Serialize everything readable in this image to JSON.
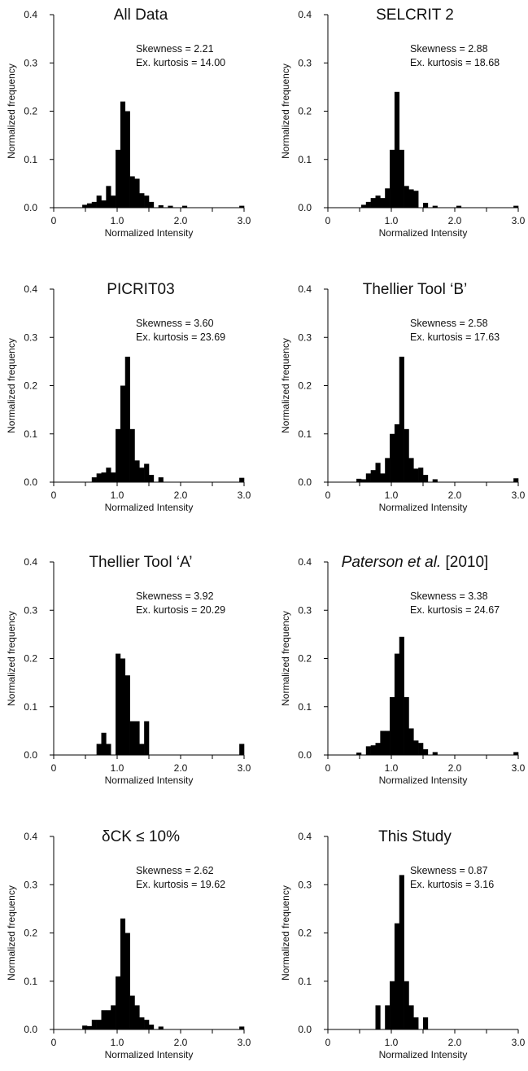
{
  "chart_data": [
    {
      "type": "bar",
      "title": "All Data",
      "xlabel": "Normalized Intensity",
      "ylabel": "Normalized frequency",
      "xlim": [
        0,
        3.0
      ],
      "ylim": [
        0,
        0.4
      ],
      "xticks": [
        "0",
        "1.0",
        "2.0",
        "3.0"
      ],
      "yticks": [
        "0.0",
        "0.1",
        "0.2",
        "0.3",
        "0.4"
      ],
      "stats": [
        "Skewness = 2.21",
        "Ex. kurtosis = 14.00"
      ],
      "bin_width": 0.075,
      "bins": [
        {
          "x": 0.45,
          "y": 0.006
        },
        {
          "x": 0.525,
          "y": 0.009
        },
        {
          "x": 0.6,
          "y": 0.012
        },
        {
          "x": 0.675,
          "y": 0.025
        },
        {
          "x": 0.75,
          "y": 0.015
        },
        {
          "x": 0.825,
          "y": 0.045
        },
        {
          "x": 0.9,
          "y": 0.025
        },
        {
          "x": 0.975,
          "y": 0.12
        },
        {
          "x": 1.05,
          "y": 0.22
        },
        {
          "x": 1.125,
          "y": 0.2
        },
        {
          "x": 1.2,
          "y": 0.065
        },
        {
          "x": 1.275,
          "y": 0.06
        },
        {
          "x": 1.35,
          "y": 0.03
        },
        {
          "x": 1.425,
          "y": 0.025
        },
        {
          "x": 1.5,
          "y": 0.012
        },
        {
          "x": 1.65,
          "y": 0.005
        },
        {
          "x": 1.8,
          "y": 0.004
        },
        {
          "x": 2.025,
          "y": 0.004
        },
        {
          "x": 2.925,
          "y": 0.004
        }
      ]
    },
    {
      "type": "bar",
      "title": "SELCRIT 2",
      "xlabel": "Normalized Intensity",
      "ylabel": "Normalized frequency",
      "xlim": [
        0,
        3.0
      ],
      "ylim": [
        0,
        0.4
      ],
      "xticks": [
        "0",
        "1.0",
        "2.0",
        "3.0"
      ],
      "yticks": [
        "0.0",
        "0.1",
        "0.2",
        "0.3",
        "0.4"
      ],
      "stats": [
        "Skewness = 2.88",
        "Ex. kurtosis = 18.68"
      ],
      "bin_width": 0.075,
      "bins": [
        {
          "x": 0.525,
          "y": 0.006
        },
        {
          "x": 0.6,
          "y": 0.012
        },
        {
          "x": 0.675,
          "y": 0.02
        },
        {
          "x": 0.75,
          "y": 0.025
        },
        {
          "x": 0.825,
          "y": 0.02
        },
        {
          "x": 0.9,
          "y": 0.04
        },
        {
          "x": 0.975,
          "y": 0.12
        },
        {
          "x": 1.05,
          "y": 0.24
        },
        {
          "x": 1.125,
          "y": 0.12
        },
        {
          "x": 1.2,
          "y": 0.045
        },
        {
          "x": 1.275,
          "y": 0.038
        },
        {
          "x": 1.35,
          "y": 0.035
        },
        {
          "x": 1.5,
          "y": 0.01
        },
        {
          "x": 1.65,
          "y": 0.004
        },
        {
          "x": 2.025,
          "y": 0.004
        },
        {
          "x": 2.925,
          "y": 0.004
        }
      ]
    },
    {
      "type": "bar",
      "title": "PICRIT03",
      "xlabel": "Normalized Intensity",
      "ylabel": "Normalized frequency",
      "xlim": [
        0,
        3.0
      ],
      "ylim": [
        0,
        0.4
      ],
      "xticks": [
        "0",
        "1.0",
        "2.0",
        "3.0"
      ],
      "yticks": [
        "0.0",
        "0.1",
        "0.2",
        "0.3",
        "0.4"
      ],
      "stats": [
        "Skewness = 3.60",
        "Ex. kurtosis = 23.69"
      ],
      "bin_width": 0.075,
      "bins": [
        {
          "x": 0.6,
          "y": 0.01
        },
        {
          "x": 0.675,
          "y": 0.018
        },
        {
          "x": 0.75,
          "y": 0.02
        },
        {
          "x": 0.825,
          "y": 0.03
        },
        {
          "x": 0.9,
          "y": 0.02
        },
        {
          "x": 0.975,
          "y": 0.11
        },
        {
          "x": 1.05,
          "y": 0.2
        },
        {
          "x": 1.125,
          "y": 0.26
        },
        {
          "x": 1.2,
          "y": 0.11
        },
        {
          "x": 1.275,
          "y": 0.045
        },
        {
          "x": 1.35,
          "y": 0.03
        },
        {
          "x": 1.425,
          "y": 0.038
        },
        {
          "x": 1.5,
          "y": 0.015
        },
        {
          "x": 1.65,
          "y": 0.01
        },
        {
          "x": 2.925,
          "y": 0.009
        }
      ]
    },
    {
      "type": "bar",
      "title": "Thellier Tool ‘B’",
      "xlabel": "Normalized Intensity",
      "ylabel": "Normalized frequency",
      "xlim": [
        0,
        3.0
      ],
      "ylim": [
        0,
        0.4
      ],
      "xticks": [
        "0",
        "1.0",
        "2.0",
        "3.0"
      ],
      "yticks": [
        "0.0",
        "0.1",
        "0.2",
        "0.3",
        "0.4"
      ],
      "stats": [
        "Skewness = 2.58",
        "Ex. kurtosis = 17.63"
      ],
      "bin_width": 0.075,
      "bins": [
        {
          "x": 0.45,
          "y": 0.007
        },
        {
          "x": 0.525,
          "y": 0.006
        },
        {
          "x": 0.6,
          "y": 0.018
        },
        {
          "x": 0.675,
          "y": 0.025
        },
        {
          "x": 0.75,
          "y": 0.04
        },
        {
          "x": 0.825,
          "y": 0.018
        },
        {
          "x": 0.9,
          "y": 0.05
        },
        {
          "x": 0.975,
          "y": 0.1
        },
        {
          "x": 1.05,
          "y": 0.12
        },
        {
          "x": 1.125,
          "y": 0.26
        },
        {
          "x": 1.2,
          "y": 0.11
        },
        {
          "x": 1.275,
          "y": 0.05
        },
        {
          "x": 1.35,
          "y": 0.028
        },
        {
          "x": 1.425,
          "y": 0.03
        },
        {
          "x": 1.5,
          "y": 0.015
        },
        {
          "x": 1.65,
          "y": 0.006
        },
        {
          "x": 2.925,
          "y": 0.008
        }
      ]
    },
    {
      "type": "bar",
      "title": "Thellier Tool ‘A’",
      "xlabel": "Normalized Intensity",
      "ylabel": "Normalized frequency",
      "xlim": [
        0,
        3.0
      ],
      "ylim": [
        0,
        0.4
      ],
      "xticks": [
        "0",
        "1.0",
        "2.0",
        "3.0"
      ],
      "yticks": [
        "0.0",
        "0.1",
        "0.2",
        "0.3",
        "0.4"
      ],
      "stats": [
        "Skewness = 3.92",
        "Ex. kurtosis = 20.29"
      ],
      "bin_width": 0.075,
      "bins": [
        {
          "x": 0.675,
          "y": 0.023
        },
        {
          "x": 0.75,
          "y": 0.046
        },
        {
          "x": 0.825,
          "y": 0.023
        },
        {
          "x": 0.975,
          "y": 0.21
        },
        {
          "x": 1.05,
          "y": 0.2
        },
        {
          "x": 1.125,
          "y": 0.165
        },
        {
          "x": 1.2,
          "y": 0.07
        },
        {
          "x": 1.275,
          "y": 0.07
        },
        {
          "x": 1.35,
          "y": 0.023
        },
        {
          "x": 1.425,
          "y": 0.07
        },
        {
          "x": 2.925,
          "y": 0.023
        }
      ]
    },
    {
      "type": "bar",
      "title": "Paterson et al. [2010]",
      "title_parts": [
        "Paterson et al.",
        " [2010]"
      ],
      "xlabel": "Normalized Intensity",
      "ylabel": "Normalized frequency",
      "xlim": [
        0,
        3.0
      ],
      "ylim": [
        0,
        0.4
      ],
      "xticks": [
        "0",
        "1.0",
        "2.0",
        "3.0"
      ],
      "yticks": [
        "0.0",
        "0.1",
        "0.2",
        "0.3",
        "0.4"
      ],
      "stats": [
        "Skewness = 3.38",
        "Ex. kurtosis = 24.67"
      ],
      "bin_width": 0.075,
      "bins": [
        {
          "x": 0.45,
          "y": 0.005
        },
        {
          "x": 0.6,
          "y": 0.018
        },
        {
          "x": 0.675,
          "y": 0.02
        },
        {
          "x": 0.75,
          "y": 0.025
        },
        {
          "x": 0.825,
          "y": 0.05
        },
        {
          "x": 0.9,
          "y": 0.05
        },
        {
          "x": 0.975,
          "y": 0.12
        },
        {
          "x": 1.05,
          "y": 0.21
        },
        {
          "x": 1.125,
          "y": 0.245
        },
        {
          "x": 1.2,
          "y": 0.12
        },
        {
          "x": 1.275,
          "y": 0.055
        },
        {
          "x": 1.35,
          "y": 0.03
        },
        {
          "x": 1.425,
          "y": 0.025
        },
        {
          "x": 1.5,
          "y": 0.012
        },
        {
          "x": 1.65,
          "y": 0.006
        },
        {
          "x": 2.925,
          "y": 0.006
        }
      ]
    },
    {
      "type": "bar",
      "title": "δCK ≤ 10%",
      "xlabel": "Normalized Intensity",
      "ylabel": "Normalized frequency",
      "xlim": [
        0,
        3.0
      ],
      "ylim": [
        0,
        0.4
      ],
      "xticks": [
        "0",
        "1.0",
        "2.0",
        "3.0"
      ],
      "yticks": [
        "0.0",
        "0.1",
        "0.2",
        "0.3",
        "0.4"
      ],
      "stats": [
        "Skewness = 2.62",
        "Ex. kurtosis = 19.62"
      ],
      "bin_width": 0.075,
      "bins": [
        {
          "x": 0.45,
          "y": 0.008
        },
        {
          "x": 0.525,
          "y": 0.007
        },
        {
          "x": 0.6,
          "y": 0.02
        },
        {
          "x": 0.675,
          "y": 0.02
        },
        {
          "x": 0.75,
          "y": 0.04
        },
        {
          "x": 0.825,
          "y": 0.04
        },
        {
          "x": 0.9,
          "y": 0.05
        },
        {
          "x": 0.975,
          "y": 0.11
        },
        {
          "x": 1.05,
          "y": 0.23
        },
        {
          "x": 1.125,
          "y": 0.2
        },
        {
          "x": 1.2,
          "y": 0.07
        },
        {
          "x": 1.275,
          "y": 0.05
        },
        {
          "x": 1.35,
          "y": 0.025
        },
        {
          "x": 1.425,
          "y": 0.02
        },
        {
          "x": 1.5,
          "y": 0.01
        },
        {
          "x": 1.65,
          "y": 0.006
        },
        {
          "x": 2.925,
          "y": 0.006
        }
      ]
    },
    {
      "type": "bar",
      "title": "This Study",
      "xlabel": "Normalized Intensity",
      "ylabel": "Normalized frequency",
      "xlim": [
        0,
        3.0
      ],
      "ylim": [
        0,
        0.4
      ],
      "xticks": [
        "0",
        "1.0",
        "2.0",
        "3.0"
      ],
      "yticks": [
        "0.0",
        "0.1",
        "0.2",
        "0.3",
        "0.4"
      ],
      "stats": [
        "Skewness = 0.87",
        "Ex. kurtosis = 3.16"
      ],
      "bin_width": 0.075,
      "bins": [
        {
          "x": 0.75,
          "y": 0.05
        },
        {
          "x": 0.9,
          "y": 0.05
        },
        {
          "x": 0.975,
          "y": 0.1
        },
        {
          "x": 1.05,
          "y": 0.22
        },
        {
          "x": 1.125,
          "y": 0.32
        },
        {
          "x": 1.2,
          "y": 0.1
        },
        {
          "x": 1.275,
          "y": 0.05
        },
        {
          "x": 1.35,
          "y": 0.025
        },
        {
          "x": 1.5,
          "y": 0.025
        }
      ]
    }
  ]
}
